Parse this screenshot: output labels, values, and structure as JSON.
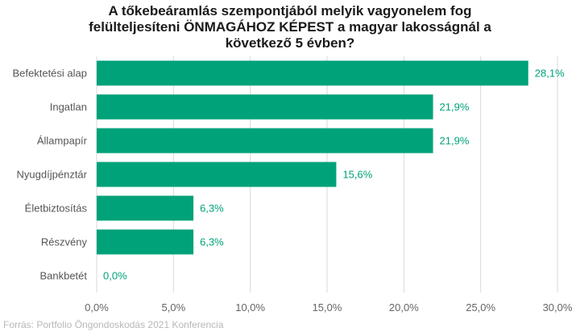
{
  "chart_data": {
    "type": "bar",
    "orientation": "horizontal",
    "title_lines": [
      "A tőkebeáramlás szempontjából melyik vagyonelem fog",
      "felülteljesíteni ÖNMAGÁHOZ KÉPEST a magyar lakosságnál a",
      "következő 5 évben?"
    ],
    "categories": [
      "Befektetési alap",
      "Ingatlan",
      "Állampapír",
      "Nyugdíjpénztár",
      "Életbiztosítás",
      "Részvény",
      "Bankbetét"
    ],
    "values": [
      28.1,
      21.9,
      21.9,
      15.6,
      6.3,
      6.3,
      0.0
    ],
    "data_labels": [
      "28,1%",
      "21,9%",
      "21,9%",
      "15,6%",
      "6,3%",
      "6,3%",
      "0,0%"
    ],
    "x_ticks": [
      0,
      5,
      10,
      15,
      20,
      25,
      30
    ],
    "x_tick_labels": [
      "0,0%",
      "5,0%",
      "10,0%",
      "15,0%",
      "20,0%",
      "25,0%",
      "30,0%"
    ],
    "xlim": [
      0,
      30
    ],
    "grid": true,
    "bar_color": "#00a27a",
    "label_color": "#00a27a",
    "grid_color": "#d9d9d9"
  },
  "source": "Forrás: Portfolio Öngondoskodás 2021 Konferencia"
}
